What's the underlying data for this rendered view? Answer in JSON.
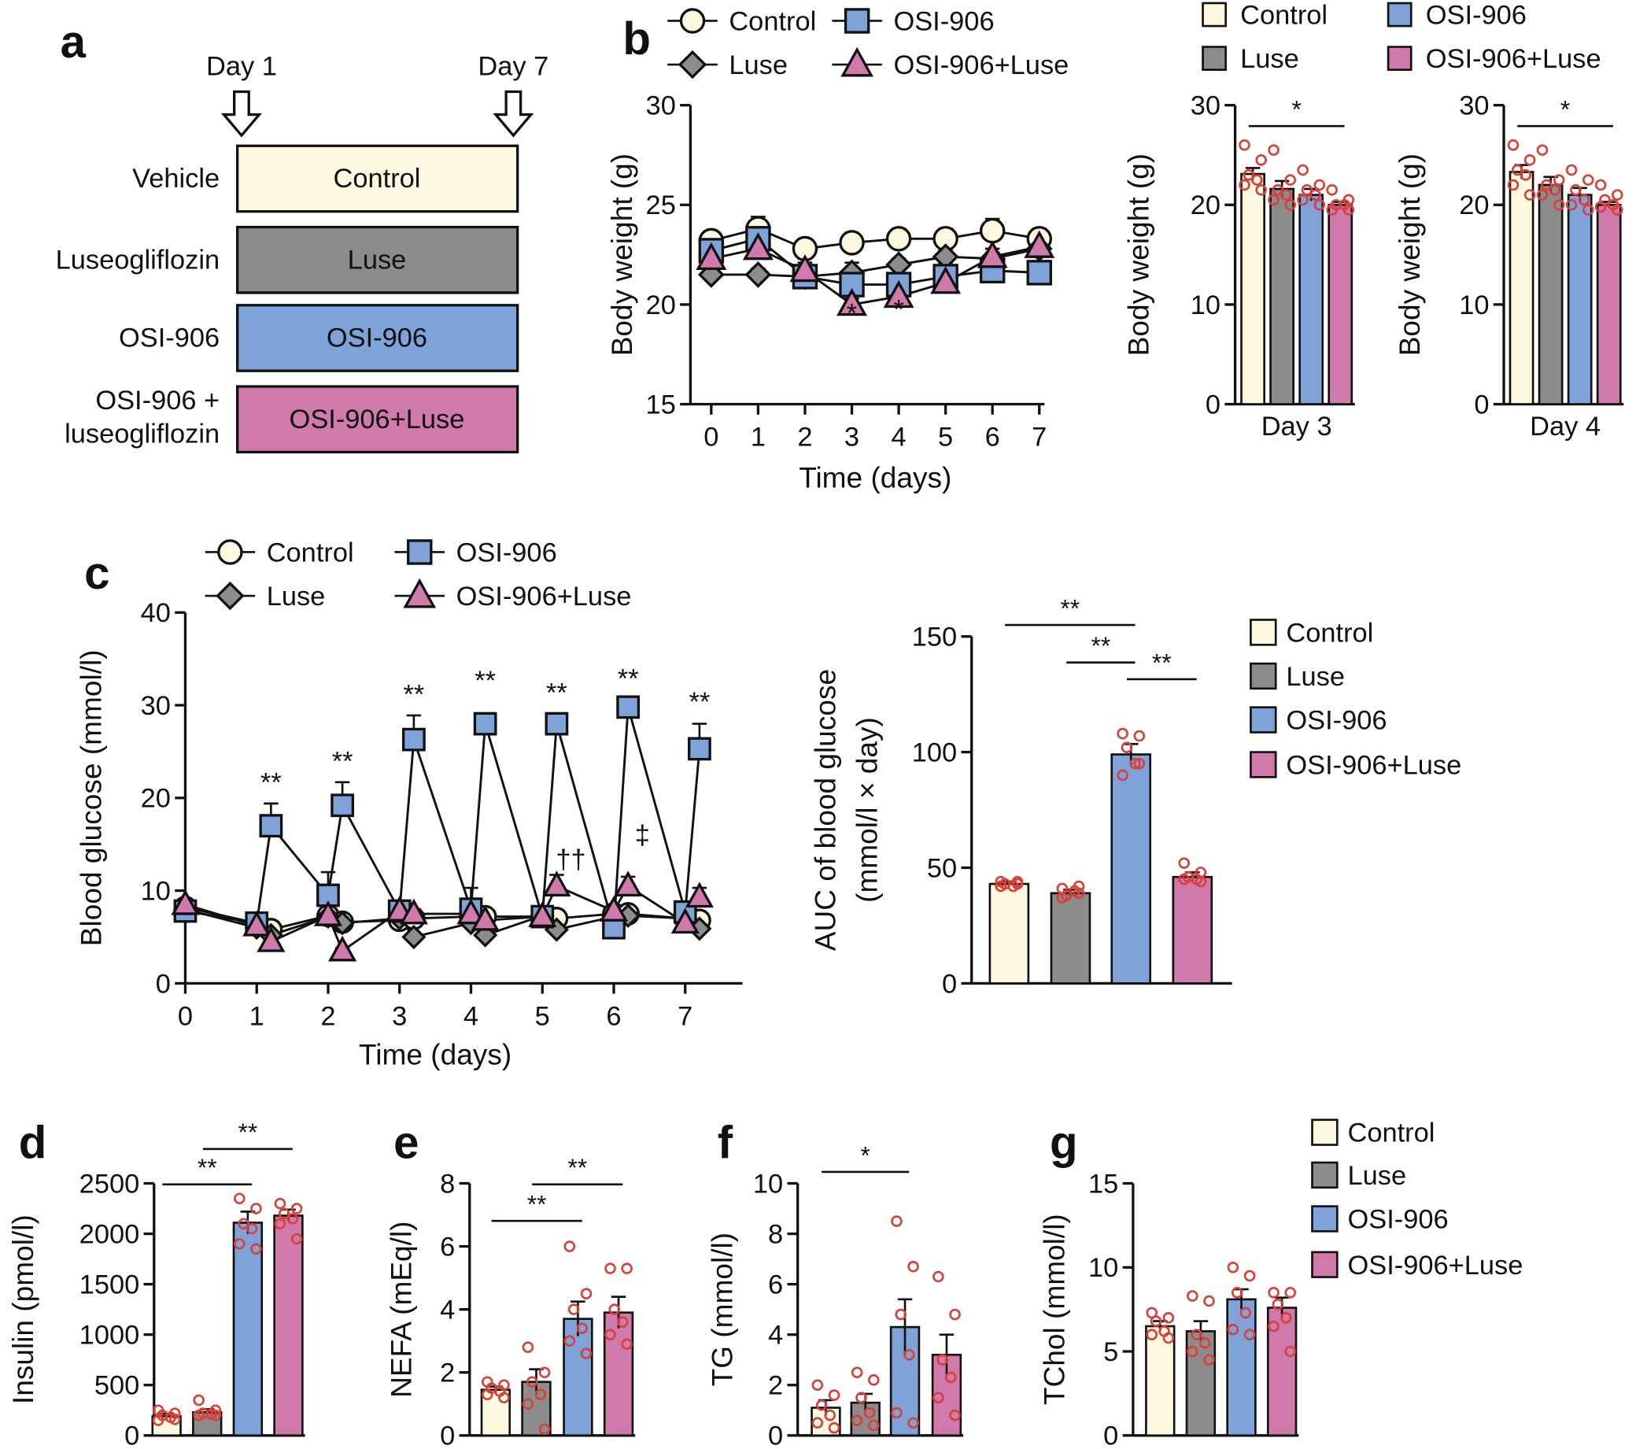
{
  "colors": {
    "control": "#fdf9e0",
    "luse": "#8c8c8c",
    "osi": "#7fa3d8",
    "osiluse": "#d07aab",
    "dots": "#d9403a"
  },
  "groups": [
    "Control",
    "Luse",
    "OSI-906",
    "OSI-906+Luse"
  ],
  "panel_a": {
    "letter": "a",
    "day1": "Day 1",
    "day7": "Day 7",
    "rows": [
      {
        "label": "Vehicle",
        "box": "Control"
      },
      {
        "label": "Luseogliflozin",
        "box": "Luse"
      },
      {
        "label": "OSI-906",
        "box": "OSI-906"
      },
      {
        "label": "OSI-906 +",
        "label2": "luseogliflozin",
        "box": "OSI-906+Luse"
      }
    ]
  },
  "panel_b": {
    "letter": "b"
  },
  "panel_c": {
    "letter": "c"
  },
  "panel_d": {
    "letter": "d"
  },
  "panel_e": {
    "letter": "e"
  },
  "panel_f": {
    "letter": "f"
  },
  "panel_g": {
    "letter": "g"
  },
  "chart_data": [
    {
      "id": "b_line",
      "type": "line",
      "xlabel": "Time (days)",
      "ylabel": "Body weight (g)",
      "ylim": [
        15,
        30
      ],
      "yticks": [
        15,
        20,
        25,
        30
      ],
      "xticks": [
        0,
        1,
        2,
        3,
        4,
        5,
        6,
        7
      ],
      "x": [
        0,
        1,
        2,
        3,
        4,
        5,
        6,
        7
      ],
      "series": [
        {
          "name": "Control",
          "values": [
            23.2,
            23.8,
            22.8,
            23.1,
            23.3,
            23.3,
            23.7,
            23.3
          ],
          "sem": [
            0.4,
            0.6,
            0.5,
            0.5,
            0.5,
            0.5,
            0.6,
            0.5
          ]
        },
        {
          "name": "Luse",
          "values": [
            21.5,
            21.5,
            21.4,
            21.6,
            22.0,
            22.4,
            22.3,
            22.8
          ],
          "sem": [
            0.3,
            0.3,
            0.3,
            0.5,
            0.3,
            0.3,
            0.3,
            0.3
          ]
        },
        {
          "name": "OSI-906",
          "values": [
            22.7,
            23.3,
            21.4,
            21.0,
            21.0,
            21.4,
            21.7,
            21.6
          ],
          "sem": [
            0.4,
            0.5,
            0.9,
            0.4,
            0.4,
            0.7,
            0.9,
            0.9
          ]
        },
        {
          "name": "OSI-906+Luse",
          "values": [
            22.3,
            22.8,
            21.7,
            20.0,
            20.4,
            21.1,
            22.4,
            22.9
          ],
          "sem": [
            0.3,
            0.4,
            0.4,
            0.3,
            0.3,
            0.3,
            0.4,
            0.3
          ]
        }
      ],
      "annotations": [
        {
          "x": 3,
          "y": 19.1,
          "text": "*"
        },
        {
          "x": 4,
          "y": 19.3,
          "text": "*"
        }
      ]
    },
    {
      "id": "b_day3",
      "type": "bar",
      "xlabel": "Day 3",
      "ylabel": "Body weight (g)",
      "ylim": [
        0,
        30
      ],
      "yticks": [
        0,
        10,
        20,
        30
      ],
      "categories": [
        "Control",
        "Luse",
        "OSI-906",
        "OSI-906+Luse"
      ],
      "values": [
        23.1,
        21.6,
        21.0,
        20.0
      ],
      "sem": [
        0.6,
        0.8,
        0.6,
        0.3
      ],
      "points": [
        [
          26,
          24.5,
          23,
          22.5,
          22,
          21.5
        ],
        [
          25.5,
          22.5,
          21.5,
          21,
          20.5,
          20
        ],
        [
          23.5,
          22,
          21.5,
          21,
          20.5,
          20
        ],
        [
          21.5,
          20.5,
          20,
          20,
          19.5,
          19.5
        ]
      ],
      "significance": [
        {
          "from": 0,
          "to": 3,
          "label": "*"
        }
      ]
    },
    {
      "id": "b_day4",
      "type": "bar",
      "xlabel": "Day 4",
      "ylabel": "Body weight (g)",
      "ylim": [
        0,
        30
      ],
      "yticks": [
        0,
        10,
        20,
        30
      ],
      "categories": [
        "Control",
        "Luse",
        "OSI-906",
        "OSI-906+Luse"
      ],
      "values": [
        23.3,
        22.0,
        21.0,
        20.0
      ],
      "sem": [
        0.7,
        0.8,
        0.7,
        0.3
      ],
      "points": [
        [
          26,
          24.5,
          23.5,
          23,
          22,
          21
        ],
        [
          25.5,
          22.5,
          22,
          21.5,
          21,
          20
        ],
        [
          23.5,
          22.5,
          21.5,
          20.5,
          20,
          19.5
        ],
        [
          22,
          21,
          20.5,
          20,
          19.8,
          19.5
        ]
      ],
      "significance": [
        {
          "from": 0,
          "to": 3,
          "label": "*"
        }
      ]
    },
    {
      "id": "c_line",
      "type": "line",
      "xlabel": "Time (days)",
      "ylabel": "Blood glucose (mmol/l)",
      "ylim": [
        0,
        40
      ],
      "yticks": [
        0,
        10,
        20,
        30,
        40
      ],
      "xticks": [
        0,
        1,
        2,
        3,
        4,
        5,
        6,
        7
      ],
      "x": [
        0,
        1,
        1.2,
        2,
        2.2,
        3,
        3.2,
        4,
        4.2,
        5,
        5.2,
        6,
        6.2,
        7,
        7.2
      ],
      "series": [
        {
          "name": "Control",
          "values": [
            8.2,
            6.5,
            5.8,
            7.3,
            6.6,
            6.8,
            7.0,
            7.2,
            7.2,
            7.2,
            7.0,
            7.5,
            7.5,
            7.0,
            6.8
          ],
          "sem": [
            0.5,
            0.4,
            0.4,
            0.4,
            0.4,
            0.4,
            0.4,
            0.4,
            0.4,
            0.4,
            0.4,
            0.4,
            0.4,
            0.4,
            0.4
          ]
        },
        {
          "name": "Luse",
          "values": [
            8.0,
            6.0,
            5.2,
            7.2,
            6.5,
            7.0,
            5.0,
            6.5,
            5.2,
            7.3,
            5.8,
            7.2,
            7.3,
            7.0,
            5.9
          ],
          "sem": [
            0.4,
            0.4,
            0.3,
            0.4,
            0.3,
            0.4,
            0.3,
            0.4,
            0.3,
            0.4,
            0.3,
            0.4,
            0.3,
            0.4,
            0.3
          ]
        },
        {
          "name": "OSI-906",
          "values": [
            7.8,
            6.5,
            17.0,
            9.5,
            19.2,
            7.8,
            26.3,
            8.0,
            28.0,
            7.2,
            28.0,
            6.0,
            29.8,
            7.7,
            25.3
          ],
          "sem": [
            0.5,
            0.4,
            2.4,
            2.5,
            2.5,
            1.0,
            2.6,
            2.3,
            0.5,
            0.4,
            0.5,
            0.4,
            0.6,
            0.5,
            2.7
          ]
        },
        {
          "name": "OSI-906+Luse",
          "values": [
            8.5,
            6.2,
            4.5,
            7.3,
            3.5,
            7.8,
            7.5,
            7.5,
            6.8,
            7.2,
            10.5,
            7.8,
            10.5,
            6.5,
            9.3
          ],
          "sem": [
            0.6,
            0.4,
            0.3,
            0.4,
            0.3,
            0.5,
            0.5,
            0.5,
            0.4,
            0.4,
            1.2,
            0.5,
            1.0,
            0.4,
            1.0
          ]
        }
      ],
      "annotations": [
        {
          "x": 1.2,
          "y": 20.7,
          "text": "**"
        },
        {
          "x": 2.2,
          "y": 23.0,
          "text": "**"
        },
        {
          "x": 3.2,
          "y": 30.2,
          "text": "**"
        },
        {
          "x": 4.2,
          "y": 31.7,
          "text": "**"
        },
        {
          "x": 5.2,
          "y": 30.4,
          "text": "**"
        },
        {
          "x": 6.2,
          "y": 31.9,
          "text": "**"
        },
        {
          "x": 7.2,
          "y": 29.4,
          "text": "**"
        },
        {
          "x": 5.4,
          "y": 12.4,
          "text": "††"
        },
        {
          "x": 6.4,
          "y": 15.0,
          "text": "‡"
        }
      ]
    },
    {
      "id": "c_auc",
      "type": "bar",
      "xlabel": "",
      "ylabel": "AUC of blood glucose",
      "ylabel2": "(mmol/l × day)",
      "ylim": [
        0,
        150
      ],
      "yticks": [
        0,
        50,
        100,
        150
      ],
      "categories": [
        "Control",
        "Luse",
        "OSI-906",
        "OSI-906+Luse"
      ],
      "values": [
        43,
        39,
        99,
        46
      ],
      "sem": [
        1,
        1.5,
        4.5,
        2
      ],
      "points": [
        [
          44,
          43,
          43,
          42,
          42,
          44
        ],
        [
          41,
          39,
          38,
          40,
          37,
          42
        ],
        [
          108,
          107,
          102,
          95,
          90,
          95
        ],
        [
          52,
          48,
          46,
          45,
          45,
          44
        ]
      ],
      "significance": [
        {
          "from": 0,
          "to": 2,
          "label": "**"
        },
        {
          "from": 1,
          "to": 2,
          "label": "**"
        },
        {
          "from": 2,
          "to": 3,
          "label": "**"
        }
      ]
    },
    {
      "id": "d",
      "type": "bar",
      "xlabel": "",
      "ylabel": "Insulin (pmol/l)",
      "ylim": [
        0,
        2500
      ],
      "yticks": [
        0,
        500,
        1000,
        1500,
        2000,
        2500
      ],
      "categories": [
        "Control",
        "Luse",
        "OSI-906",
        "OSI-906+Luse"
      ],
      "values": [
        190,
        230,
        2110,
        2180
      ],
      "sem": [
        25,
        30,
        110,
        60
      ],
      "points": [
        [
          250,
          220,
          200,
          180,
          150,
          160
        ],
        [
          350,
          250,
          220,
          210,
          200,
          200
        ],
        [
          2350,
          2250,
          2100,
          2050,
          1900,
          1850
        ],
        [
          2300,
          2250,
          2200,
          2150,
          2100,
          1950
        ]
      ],
      "significance": [
        {
          "from": 0,
          "to": 2,
          "label": "**"
        },
        {
          "from": 1,
          "to": 3,
          "label": "**"
        }
      ]
    },
    {
      "id": "e",
      "type": "bar",
      "xlabel": "",
      "ylabel": "NEFA (mEq/l)",
      "ylim": [
        0,
        8
      ],
      "yticks": [
        0,
        2,
        4,
        6,
        8
      ],
      "categories": [
        "Control",
        "Luse",
        "OSI-906",
        "OSI-906+Luse"
      ],
      "values": [
        1.45,
        1.7,
        3.7,
        3.9
      ],
      "sem": [
        0.1,
        0.4,
        0.55,
        0.5
      ],
      "points": [
        [
          1.7,
          1.6,
          1.5,
          1.4,
          1.3,
          1.2
        ],
        [
          2.8,
          2.0,
          1.7,
          1.3,
          1.0,
          0.2
        ],
        [
          6.0,
          4.5,
          4.0,
          3.4,
          3.0,
          2.6
        ],
        [
          5.3,
          5.3,
          4.0,
          3.6,
          3.2,
          2.9
        ]
      ],
      "significance": [
        {
          "from": 0,
          "to": 2,
          "label": "**"
        },
        {
          "from": 1,
          "to": 3,
          "label": "**"
        }
      ]
    },
    {
      "id": "f",
      "type": "bar",
      "xlabel": "",
      "ylabel": "TG (mmol/l)",
      "ylim": [
        0,
        10
      ],
      "yticks": [
        0,
        2,
        4,
        6,
        8,
        10
      ],
      "categories": [
        "Control",
        "Luse",
        "OSI-906",
        "OSI-906+Luse"
      ],
      "values": [
        1.1,
        1.3,
        4.3,
        3.2
      ],
      "sem": [
        0.3,
        0.35,
        1.1,
        0.8
      ],
      "points": [
        [
          2.0,
          1.6,
          1.2,
          0.8,
          0.5,
          0.3
        ],
        [
          2.5,
          2.2,
          1.5,
          0.9,
          0.6,
          0.4
        ],
        [
          8.5,
          6.7,
          4.8,
          3.2,
          0.9,
          0.5
        ],
        [
          6.3,
          4.8,
          3.0,
          2.3,
          1.5,
          0.8
        ]
      ],
      "significance": [
        {
          "from": 0,
          "to": 2,
          "label": "*"
        }
      ]
    },
    {
      "id": "g",
      "type": "bar",
      "xlabel": "",
      "ylabel": "TChol (mmol/l)",
      "ylim": [
        0,
        15
      ],
      "yticks": [
        0,
        5,
        10,
        15
      ],
      "categories": [
        "Control",
        "Luse",
        "OSI-906",
        "OSI-906+Luse"
      ],
      "values": [
        6.5,
        6.2,
        8.1,
        7.6
      ],
      "sem": [
        0.3,
        0.6,
        0.6,
        0.6
      ],
      "points": [
        [
          7.3,
          7.0,
          6.8,
          6.2,
          6.0,
          5.8
        ],
        [
          8.3,
          8.0,
          6.0,
          5.5,
          5.0,
          4.5
        ],
        [
          10.0,
          9.5,
          8.5,
          7.3,
          6.3,
          6.0
        ],
        [
          8.5,
          8.5,
          7.8,
          7.0,
          6.5,
          5.0
        ]
      ],
      "significance": []
    }
  ]
}
